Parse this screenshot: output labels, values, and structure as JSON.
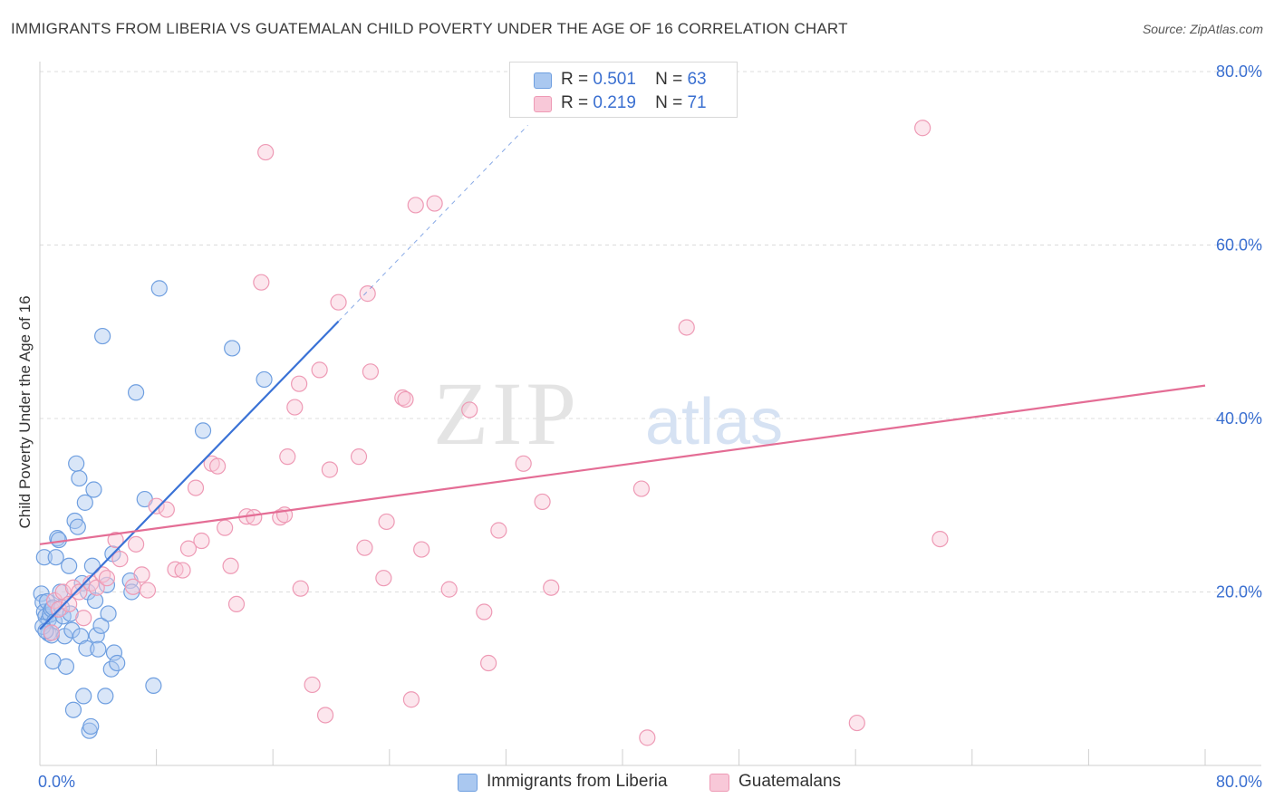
{
  "chart_data": {
    "type": "scatter",
    "title": "IMMIGRANTS FROM LIBERIA VS GUATEMALAN CHILD POVERTY UNDER THE AGE OF 16 CORRELATION CHART",
    "source": "Source: ZipAtlas.com",
    "xlabel": "",
    "ylabel": "Child Poverty Under the Age of 16",
    "xlim": [
      0,
      80
    ],
    "ylim": [
      0,
      80
    ],
    "x_tick_labels": [
      "0.0%",
      "80.0%"
    ],
    "y_tick_labels": [
      "20.0%",
      "40.0%",
      "60.0%",
      "80.0%"
    ],
    "y_ticks": [
      20,
      40,
      60,
      80
    ],
    "watermark": {
      "zip": "ZIP",
      "atlas": "atlas"
    },
    "legend": [
      {
        "r_label": "R =",
        "r": "0.501",
        "n_label": "N =",
        "n": "63"
      },
      {
        "r_label": "R =",
        "r": "0.219",
        "n_label": "N =",
        "n": "71"
      }
    ],
    "series": [
      {
        "name": "Immigrants from Liberia",
        "color": "#6f9fe0",
        "fill": "#aac8f0",
        "line_color": "#3a72d6",
        "trend": {
          "x0": 0,
          "y0": 15.7,
          "x1": 20.5,
          "y1": 51.2,
          "dash_to_x": 33.5,
          "dash_to_y": 73.8
        },
        "points": [
          [
            0.1,
            19.8
          ],
          [
            0.2,
            18.8
          ],
          [
            0.3,
            17.7
          ],
          [
            0.4,
            17.2
          ],
          [
            0.5,
            18.9
          ],
          [
            0.6,
            16.8
          ],
          [
            0.7,
            17.4
          ],
          [
            0.8,
            18.0
          ],
          [
            0.9,
            18.2
          ],
          [
            1.0,
            16.6
          ],
          [
            0.3,
            24.0
          ],
          [
            0.6,
            15.2
          ],
          [
            0.8,
            15.0
          ],
          [
            1.1,
            24.0
          ],
          [
            1.2,
            26.2
          ],
          [
            1.3,
            26.0
          ],
          [
            1.5,
            18.2
          ],
          [
            1.6,
            17.2
          ],
          [
            1.7,
            14.9
          ],
          [
            1.8,
            11.4
          ],
          [
            2.0,
            23.0
          ],
          [
            2.1,
            17.5
          ],
          [
            2.2,
            15.6
          ],
          [
            2.3,
            6.4
          ],
          [
            2.4,
            28.2
          ],
          [
            2.5,
            34.8
          ],
          [
            2.6,
            27.5
          ],
          [
            2.7,
            33.1
          ],
          [
            2.8,
            14.9
          ],
          [
            2.9,
            21.0
          ],
          [
            3.0,
            8.0
          ],
          [
            3.1,
            30.3
          ],
          [
            3.2,
            13.5
          ],
          [
            3.3,
            20.0
          ],
          [
            3.4,
            4.0
          ],
          [
            3.5,
            4.5
          ],
          [
            3.6,
            23.0
          ],
          [
            3.7,
            31.8
          ],
          [
            3.8,
            19.0
          ],
          [
            3.9,
            15.0
          ],
          [
            4.0,
            13.4
          ],
          [
            4.2,
            16.1
          ],
          [
            4.3,
            49.5
          ],
          [
            4.5,
            8.0
          ],
          [
            4.6,
            20.8
          ],
          [
            4.7,
            17.5
          ],
          [
            4.9,
            11.1
          ],
          [
            5.0,
            24.4
          ],
          [
            5.1,
            13.0
          ],
          [
            5.3,
            11.8
          ],
          [
            6.2,
            21.3
          ],
          [
            6.3,
            20.0
          ],
          [
            6.6,
            43.0
          ],
          [
            7.2,
            30.7
          ],
          [
            7.8,
            9.2
          ],
          [
            8.2,
            55.0
          ],
          [
            11.2,
            38.6
          ],
          [
            13.2,
            48.1
          ],
          [
            15.4,
            44.5
          ],
          [
            0.2,
            16.0
          ],
          [
            0.4,
            15.5
          ],
          [
            0.9,
            12.0
          ],
          [
            1.4,
            20.0
          ]
        ]
      },
      {
        "name": "Guatemalans",
        "color": "#ee9ab5",
        "fill": "#f8c8d8",
        "line_color": "#e46d95",
        "trend": {
          "x0": 0,
          "y0": 25.5,
          "x1": 80,
          "y1": 43.8
        },
        "points": [
          [
            0.8,
            15.3
          ],
          [
            1.0,
            19.0
          ],
          [
            1.3,
            18.0
          ],
          [
            1.6,
            20.0
          ],
          [
            2.0,
            18.6
          ],
          [
            2.3,
            20.5
          ],
          [
            2.7,
            20.0
          ],
          [
            3.0,
            17.0
          ],
          [
            3.5,
            21.0
          ],
          [
            3.9,
            20.5
          ],
          [
            4.3,
            22.0
          ],
          [
            4.6,
            21.6
          ],
          [
            5.2,
            26.0
          ],
          [
            5.5,
            23.8
          ],
          [
            6.4,
            20.6
          ],
          [
            6.6,
            25.5
          ],
          [
            7.0,
            22.0
          ],
          [
            7.4,
            20.2
          ],
          [
            8.0,
            29.9
          ],
          [
            8.7,
            29.5
          ],
          [
            9.3,
            22.6
          ],
          [
            9.8,
            22.5
          ],
          [
            10.2,
            25.0
          ],
          [
            10.7,
            32.0
          ],
          [
            11.1,
            25.9
          ],
          [
            11.8,
            34.8
          ],
          [
            12.2,
            34.5
          ],
          [
            12.7,
            27.4
          ],
          [
            13.1,
            23.0
          ],
          [
            13.5,
            18.6
          ],
          [
            14.2,
            28.7
          ],
          [
            14.7,
            28.6
          ],
          [
            15.5,
            70.7
          ],
          [
            15.2,
            55.7
          ],
          [
            16.5,
            28.6
          ],
          [
            16.8,
            28.9
          ],
          [
            17.0,
            35.6
          ],
          [
            17.5,
            41.3
          ],
          [
            17.8,
            44.0
          ],
          [
            17.9,
            20.4
          ],
          [
            18.7,
            9.3
          ],
          [
            19.2,
            45.6
          ],
          [
            19.6,
            5.8
          ],
          [
            19.9,
            34.1
          ],
          [
            20.5,
            53.4
          ],
          [
            21.9,
            35.6
          ],
          [
            22.3,
            25.1
          ],
          [
            22.5,
            54.4
          ],
          [
            22.7,
            45.4
          ],
          [
            23.6,
            21.6
          ],
          [
            23.8,
            28.1
          ],
          [
            24.9,
            42.4
          ],
          [
            25.1,
            42.2
          ],
          [
            25.5,
            7.6
          ],
          [
            25.8,
            64.6
          ],
          [
            26.2,
            24.9
          ],
          [
            27.1,
            64.8
          ],
          [
            28.1,
            20.3
          ],
          [
            29.5,
            41.0
          ],
          [
            30.5,
            17.7
          ],
          [
            30.8,
            11.8
          ],
          [
            31.5,
            27.1
          ],
          [
            33.2,
            34.8
          ],
          [
            34.5,
            30.4
          ],
          [
            35.1,
            20.5
          ],
          [
            41.3,
            31.9
          ],
          [
            41.7,
            3.2
          ],
          [
            44.4,
            50.5
          ],
          [
            56.1,
            4.9
          ],
          [
            60.6,
            73.5
          ],
          [
            61.8,
            26.1
          ]
        ]
      }
    ]
  }
}
